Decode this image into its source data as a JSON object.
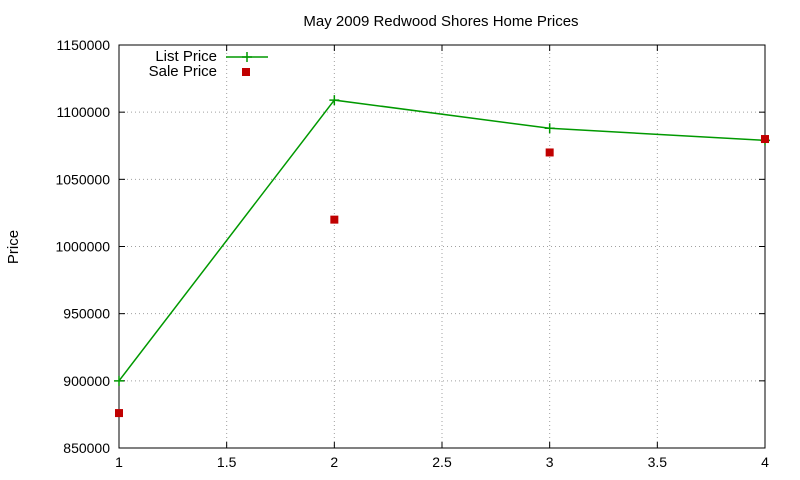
{
  "chart_data": {
    "type": "line",
    "title": "May 2009 Redwood Shores Home Prices",
    "xlabel": "",
    "ylabel": "Price",
    "xlim": [
      1,
      4
    ],
    "ylim": [
      850000,
      1150000
    ],
    "x_ticks": [
      1,
      1.5,
      2,
      2.5,
      3,
      3.5,
      4
    ],
    "x_tick_labels": [
      "1",
      "1.5",
      "2",
      "2.5",
      "3",
      "3.5",
      "4"
    ],
    "y_ticks": [
      850000,
      900000,
      950000,
      1000000,
      1050000,
      1100000,
      1150000
    ],
    "y_tick_labels": [
      "850000",
      "900000",
      "950000",
      "1000000",
      "1050000",
      "1100000",
      "1150000"
    ],
    "grid": true,
    "legend_position": "top-left",
    "series": [
      {
        "name": "List Price",
        "style": "linespoints",
        "marker": "plus",
        "color": "#009900",
        "x": [
          1,
          2,
          3,
          4
        ],
        "y": [
          900000,
          1109000,
          1088000,
          1079000
        ]
      },
      {
        "name": "Sale Price",
        "style": "points",
        "marker": "square",
        "color": "#c00000",
        "x": [
          1,
          2,
          3,
          4
        ],
        "y": [
          876000,
          1020000,
          1070000,
          1080000
        ]
      }
    ]
  }
}
